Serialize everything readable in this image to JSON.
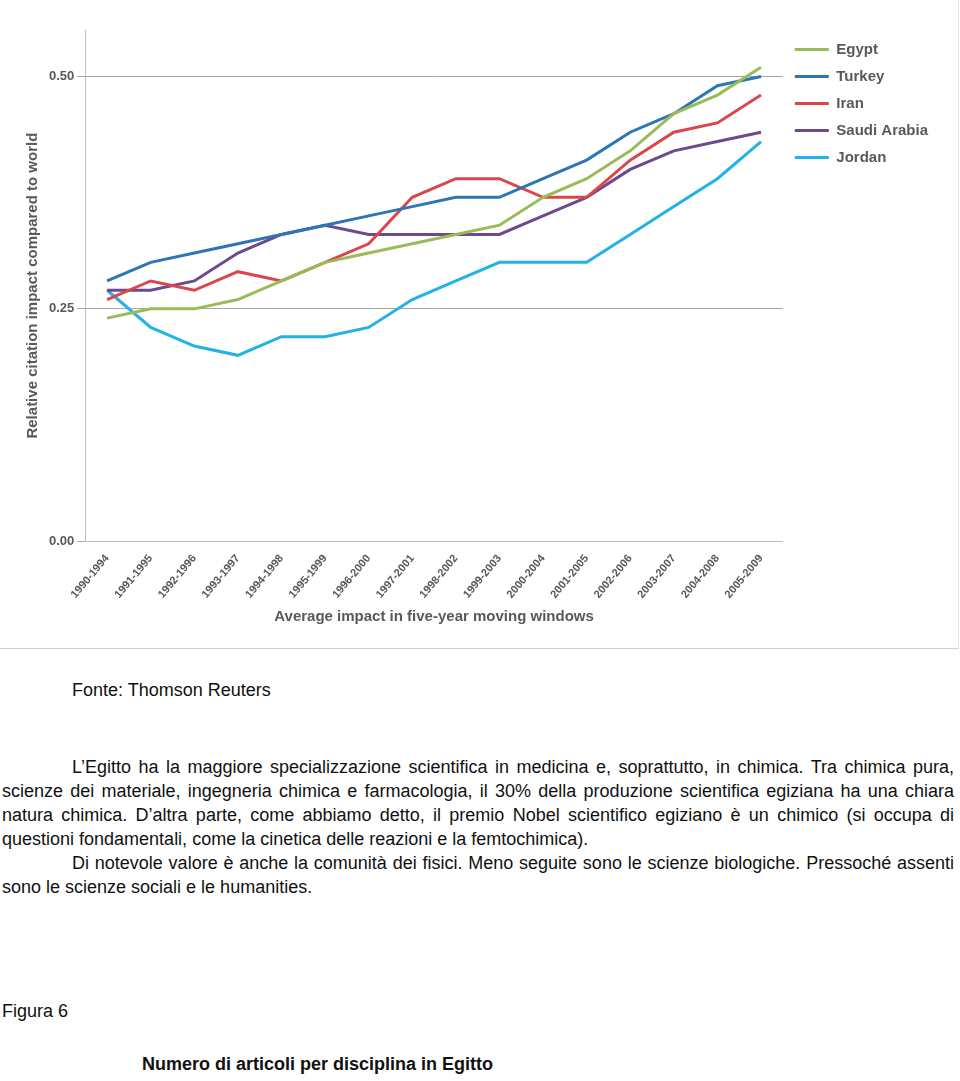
{
  "chart_data": {
    "type": "line",
    "x_label": "Average impact in five-year moving windows",
    "y_label": "Relative citation impact compared to world",
    "categories": [
      "1990-1994",
      "1991-1995",
      "1992-1996",
      "1993-1997",
      "1994-1998",
      "1995-1999",
      "1996-2000",
      "1997-2001",
      "1998-2002",
      "1999-2003",
      "2000-2004",
      "2001-2005",
      "2002-2006",
      "2003-2007",
      "2004-2008",
      "2005-2009"
    ],
    "series": [
      {
        "name": "Egypt",
        "color": "#9bbb59",
        "values": [
          0.24,
          0.25,
          0.25,
          0.26,
          0.28,
          0.3,
          0.31,
          0.32,
          0.33,
          0.34,
          0.37,
          0.39,
          0.42,
          0.46,
          0.48,
          0.51
        ]
      },
      {
        "name": "Turkey",
        "color": "#2e75b6",
        "values": [
          0.28,
          0.3,
          0.31,
          0.32,
          0.33,
          0.34,
          0.35,
          0.36,
          0.37,
          0.37,
          0.39,
          0.41,
          0.44,
          0.46,
          0.49,
          0.5
        ]
      },
      {
        "name": "Iran",
        "color": "#d9474a",
        "values": [
          0.26,
          0.28,
          0.27,
          0.29,
          0.28,
          0.3,
          0.32,
          0.37,
          0.39,
          0.39,
          0.37,
          0.37,
          0.41,
          0.44,
          0.45,
          0.48
        ]
      },
      {
        "name": "Saudi Arabia",
        "color": "#6b4a8f",
        "values": [
          0.27,
          0.27,
          0.28,
          0.31,
          0.33,
          0.34,
          0.33,
          0.33,
          0.33,
          0.33,
          0.35,
          0.37,
          0.4,
          0.42,
          0.43,
          0.44
        ]
      },
      {
        "name": "Jordan",
        "color": "#23b2e6",
        "values": [
          0.27,
          0.23,
          0.21,
          0.2,
          0.22,
          0.22,
          0.23,
          0.26,
          0.28,
          0.3,
          0.3,
          0.3,
          0.33,
          0.36,
          0.39,
          0.43
        ]
      }
    ],
    "ylim": [
      0,
      0.55
    ],
    "yticks": [
      {
        "value": 0,
        "label": "0.00"
      },
      {
        "value": 0.25,
        "label": "0.25"
      },
      {
        "value": 0.5,
        "label": "0.50"
      }
    ],
    "grid": true,
    "legend": "upper right"
  },
  "source": "Fonte: Thomson Reuters",
  "paragraphs": [
    "L’Egitto ha la maggiore specializzazione scientifica in medicina e, soprattutto, in chimica. Tra chimica pura, scienze dei materiale, ingegneria chimica e farmacologia, il 30% della produzione scientifica egiziana ha una chiara natura chimica. D’altra parte, come abbiamo detto, il premio Nobel scientifico egiziano è un chimico (si occupa di questioni fondamentali, come la cinetica delle reazioni e la femtochimica).",
    "Di notevole valore è anche la comunità dei fisici. Meno seguite sono le scienze biologiche. Pressoché assenti sono le scienze sociali e le humanities."
  ],
  "figure_label": "Figura 6",
  "figure_title": "Numero di articoli per disciplina in Egitto"
}
